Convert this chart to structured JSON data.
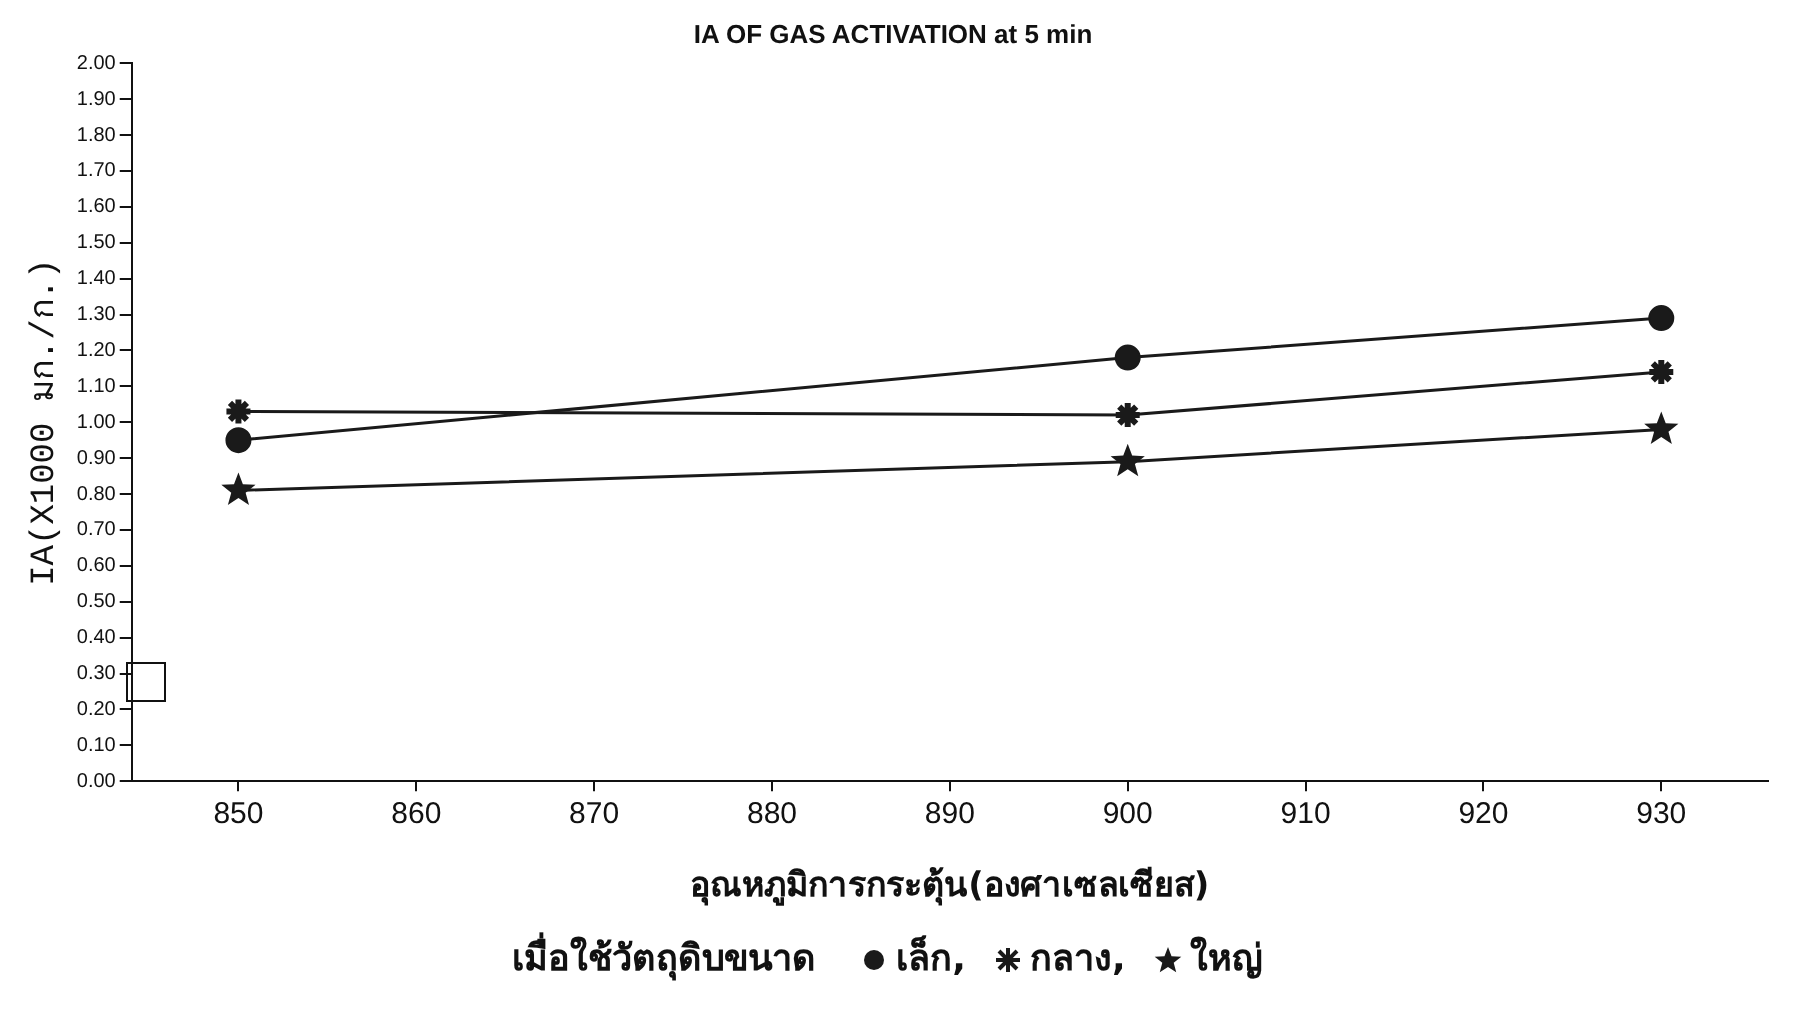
{
  "chart_data": {
    "type": "line",
    "title": "IA OF GAS ACTIVATION at 5 min",
    "xlabel": "อุณหภูมิการกระตุ้น(องศาเซลเซียส)",
    "ylabel": "IA(X1000 มก./ก.)",
    "legend_title": "เมื่อใช้วัตถุดิบขนาด",
    "legend": "bottom",
    "grid": false,
    "x": [
      850,
      900,
      930
    ],
    "series": [
      {
        "name": "เล็ก,",
        "color": "#1a1a1a",
        "marker": "circle",
        "values": [
          0.95,
          1.18,
          1.29
        ]
      },
      {
        "name": "กลาง,",
        "color": "#1a1a1a",
        "marker": "cross",
        "values": [
          1.03,
          1.02,
          1.14
        ]
      },
      {
        "name": "ใหญ่",
        "color": "#1a1a1a",
        "marker": "star",
        "values": [
          0.81,
          0.89,
          0.98
        ]
      }
    ],
    "xlim": [
      844,
      936
    ],
    "xticks": [
      850,
      860,
      870,
      880,
      890,
      900,
      910,
      920,
      930
    ],
    "ylim": [
      0,
      2
    ],
    "yticks": [
      {
        "value": 0,
        "label": "0.00"
      },
      {
        "value": 0.1,
        "label": "0.10"
      },
      {
        "value": 0.2,
        "label": "0.20"
      },
      {
        "value": 0.3,
        "label": "0.30"
      },
      {
        "value": 0.4,
        "label": "0.40"
      },
      {
        "value": 0.5,
        "label": "0.50"
      },
      {
        "value": 0.6,
        "label": "0.60"
      },
      {
        "value": 0.7,
        "label": "0.70"
      },
      {
        "value": 0.8,
        "label": "0.80"
      },
      {
        "value": 0.9,
        "label": "0.90"
      },
      {
        "value": 1,
        "label": "1.00"
      },
      {
        "value": 1.1,
        "label": "1.10"
      },
      {
        "value": 1.2,
        "label": "1.20"
      },
      {
        "value": 1.3,
        "label": "1.30"
      },
      {
        "value": 1.4,
        "label": "1.40"
      },
      {
        "value": 1.5,
        "label": "1.50"
      },
      {
        "value": 1.6,
        "label": "1.60"
      },
      {
        "value": 1.7,
        "label": "1.70"
      },
      {
        "value": 1.8,
        "label": "1.80"
      },
      {
        "value": 1.9,
        "label": "1.90"
      },
      {
        "value": 2,
        "label": "2.00"
      }
    ]
  }
}
